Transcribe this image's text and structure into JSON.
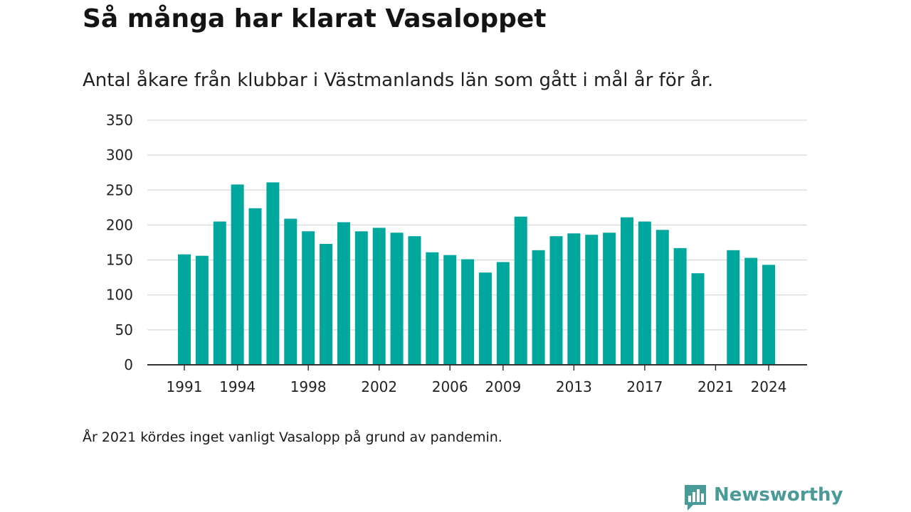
{
  "title": "Så många har klarat Vasaloppet",
  "subtitle": "Antal åkare från klubbar i Västmanlands län som gått i mål år för år.",
  "footnote": "År 2021 kördes inget vanligt Vasalopp på grund av pandemin.",
  "brand": {
    "name": "Newsworthy",
    "logo_icon": "newsworthy-chart-icon",
    "color": "#4a9a98"
  },
  "colors": {
    "bar": "#00a79d",
    "grid": "#d9d9d9",
    "axis": "#333333"
  },
  "chart_data": {
    "type": "bar",
    "title": "",
    "xlabel": "",
    "ylabel": "",
    "ylim": [
      0,
      350
    ],
    "yticks": [
      0,
      50,
      100,
      150,
      200,
      250,
      300,
      350
    ],
    "xticks": [
      1991,
      1994,
      1998,
      2002,
      2006,
      2009,
      2013,
      2017,
      2021,
      2024
    ],
    "grid": true,
    "legend": "none",
    "categories": [
      1991,
      1992,
      1993,
      1994,
      1995,
      1996,
      1997,
      1998,
      1999,
      2000,
      2001,
      2002,
      2003,
      2004,
      2005,
      2006,
      2007,
      2008,
      2009,
      2010,
      2011,
      2012,
      2013,
      2014,
      2015,
      2016,
      2017,
      2018,
      2019,
      2020,
      2021,
      2022,
      2023,
      2024
    ],
    "values": [
      158,
      156,
      205,
      258,
      224,
      261,
      209,
      191,
      173,
      204,
      191,
      196,
      189,
      184,
      161,
      157,
      151,
      132,
      147,
      212,
      164,
      184,
      188,
      186,
      189,
      211,
      205,
      193,
      167,
      131,
      null,
      164,
      153,
      143
    ]
  }
}
